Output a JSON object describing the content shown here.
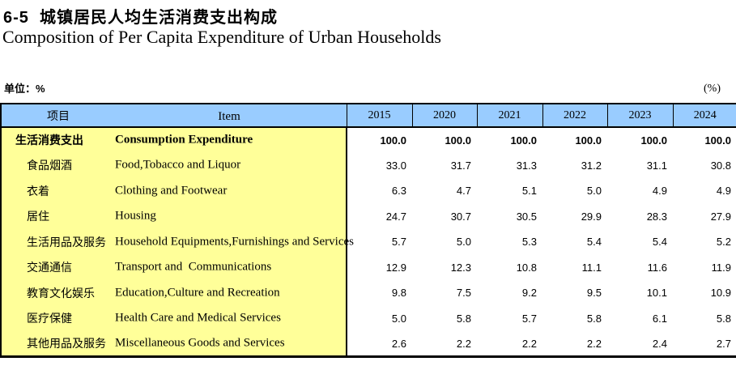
{
  "header": {
    "title_zh": "6-5  城镇居民人均生活消费支出构成",
    "title_en": "Composition of Per Capita Expenditure of Urban Households",
    "unit_left": "单位：%",
    "unit_right": "(%)"
  },
  "table": {
    "item_header_zh": "项目",
    "item_header_en": "Item",
    "years": [
      "2015",
      "2020",
      "2021",
      "2022",
      "2023",
      "2024"
    ],
    "rows": [
      {
        "zh": "生活消费支出",
        "en": "Consumption Expenditure",
        "bold": true,
        "indent": false,
        "values": [
          "100.0",
          "100.0",
          "100.0",
          "100.0",
          "100.0",
          "100.0"
        ]
      },
      {
        "zh": "食品烟酒",
        "en": "Food,Tobacco and Liquor",
        "bold": false,
        "indent": true,
        "values": [
          "33.0",
          "31.7",
          "31.3",
          "31.2",
          "31.1",
          "30.8"
        ]
      },
      {
        "zh": "衣着",
        "en": "Clothing and Footwear",
        "bold": false,
        "indent": true,
        "values": [
          "6.3",
          "4.7",
          "5.1",
          "5.0",
          "4.9",
          "4.9"
        ]
      },
      {
        "zh": "居住",
        "en": "Housing",
        "bold": false,
        "indent": true,
        "values": [
          "24.7",
          "30.7",
          "30.5",
          "29.9",
          "28.3",
          "27.9"
        ]
      },
      {
        "zh": "生活用品及服务",
        "en": "Household Equipments,Furnishings and Services",
        "bold": false,
        "indent": true,
        "values": [
          "5.7",
          "5.0",
          "5.3",
          "5.4",
          "5.4",
          "5.2"
        ]
      },
      {
        "zh": "交通通信",
        "en": "Transport and  Communications",
        "bold": false,
        "indent": true,
        "values": [
          "12.9",
          "12.3",
          "10.8",
          "11.1",
          "11.6",
          "11.9"
        ]
      },
      {
        "zh": "教育文化娱乐",
        "en": "Education,Culture and Recreation",
        "bold": false,
        "indent": true,
        "values": [
          "9.8",
          "7.5",
          "9.2",
          "9.5",
          "10.1",
          "10.9"
        ]
      },
      {
        "zh": "医疗保健",
        "en": "Health Care and Medical Services",
        "bold": false,
        "indent": true,
        "values": [
          "5.0",
          "5.8",
          "5.7",
          "5.8",
          "6.1",
          "5.8"
        ]
      },
      {
        "zh": "其他用品及服务",
        "en": "Miscellaneous Goods and Services",
        "bold": false,
        "indent": true,
        "values": [
          "2.6",
          "2.2",
          "2.2",
          "2.2",
          "2.4",
          "2.7"
        ]
      }
    ]
  },
  "colors": {
    "header_blue": "#99CCFF",
    "label_yellow": "#FFFF99",
    "border_black": "#000000",
    "background": "#FFFFFF"
  }
}
